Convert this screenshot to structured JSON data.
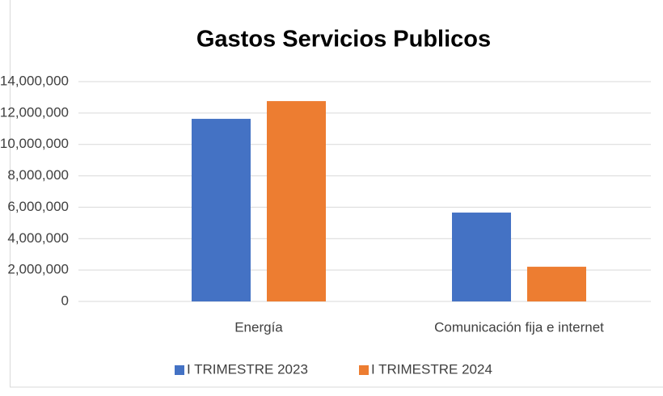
{
  "chart_data": {
    "type": "bar",
    "title": "Gastos Servicios Publicos",
    "categories": [
      "Energía",
      "Comunicación fija e internet"
    ],
    "series": [
      {
        "name": "I TRIMESTRE 2023",
        "color": "#4472c4",
        "values": [
          11630000,
          5660000
        ]
      },
      {
        "name": "I TRIMESTRE 2024",
        "color": "#ed7d31",
        "values": [
          12760000,
          2210000
        ]
      }
    ],
    "ylim": [
      0,
      14000000
    ],
    "yticks": [
      0,
      {
        "value": 2000000,
        "label": "2,000,000"
      },
      {
        "value": 4000000,
        "label": "4,000,000"
      },
      {
        "value": 6000000,
        "label": "6,000,000"
      },
      {
        "value": 8000000,
        "label": "8,000,000"
      },
      {
        "value": 10000000,
        "label": "10,000,000"
      },
      {
        "value": 12000000,
        "label": "12,000,000"
      },
      {
        "value": 14000000,
        "label": "14,000,000"
      }
    ],
    "grid": true,
    "legend": "bottom"
  }
}
